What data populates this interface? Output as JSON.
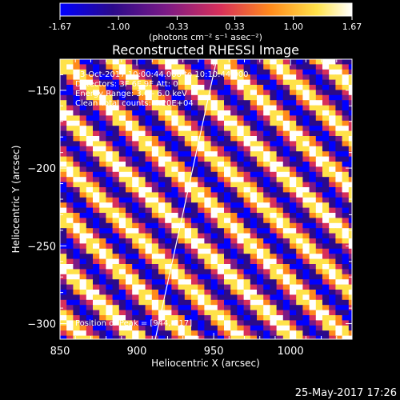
{
  "colors": {
    "background": "#000000",
    "text": "#ffffff",
    "map_stops": [
      "#0000ff",
      "#2b0a8a",
      "#7a1a86",
      "#d8305a",
      "#ff8a1c",
      "#ffe24a",
      "#ffffff"
    ]
  },
  "colorbar": {
    "ticks": [
      "-1.67",
      "-1.00",
      "-0.33",
      "0.33",
      "1.00",
      "1.67"
    ],
    "unit_label": "(photons cm⁻² s⁻¹ asec⁻²)",
    "range": [
      -1.67,
      1.67
    ]
  },
  "chart_data": {
    "type": "heatmap",
    "title": "Reconstructed RHESSI Image",
    "xlabel": "Heliocentric X (arcsec)",
    "ylabel": "Heliocentric Y (arcsec)",
    "xlim": [
      850,
      1040
    ],
    "ylim": [
      -310,
      -130
    ],
    "x_ticks": [
      "850",
      "900",
      "950",
      "1000"
    ],
    "y_ticks": [
      "−150",
      "−200",
      "−250",
      "−300"
    ],
    "x_tick_values": [
      850,
      900,
      950,
      1000
    ],
    "y_tick_values": [
      -150,
      -200,
      -250,
      -300
    ],
    "value_range": [
      -1.67,
      1.67
    ],
    "pattern": "diagonal stripes",
    "limb_line": {
      "from": [
        912,
        -310
      ],
      "to": [
        952,
        -130
      ]
    },
    "annotations": [
      "3-Oct-2017 10:00:44.000 to 10:10:44.000",
      "Detectors: 3F 6F 9F  Att: 0",
      "Energy Range: 3.0 - 6.0 keV",
      "Clean     Total counts: 4.20E+04",
      "Position of Peak = [944,-217]"
    ]
  },
  "footer": {
    "timestamp": "25-May-2017 17:26"
  }
}
